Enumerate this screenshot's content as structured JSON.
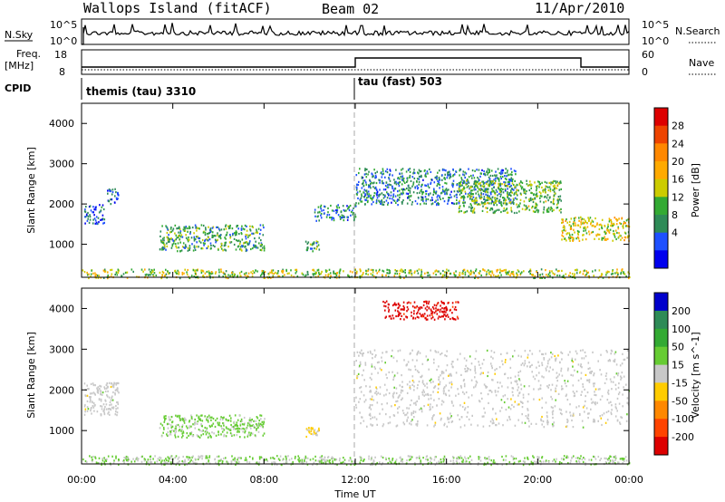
{
  "header": {
    "station": "Wallops Island (fitACF)",
    "beam": "Beam 02",
    "date": "11/Apr/2010"
  },
  "nsky_panel": {
    "label": "N.Sky",
    "ticks": [
      "10^5",
      "10^0"
    ],
    "right_label": "N.Search",
    "right_ticks": [
      "10^5",
      "10^0"
    ]
  },
  "freq_panel": {
    "label_top": "Freq.",
    "label_unit": "[MHz]",
    "ticks": [
      "18",
      "8"
    ],
    "right_label": "Nave",
    "right_ticks": [
      "60",
      "0"
    ]
  },
  "cpid_panel": {
    "label": "CPID",
    "modes": [
      "themis (tau) 3310",
      "tau (fast) 503"
    ]
  },
  "power_panel": {
    "ylabel": "Slant Range [km]",
    "yticks": [
      "4000",
      "3000",
      "2000",
      "1000"
    ],
    "colorbar_label": "Power [dB]",
    "colorbar_ticks": [
      "28",
      "24",
      "20",
      "16",
      "12",
      "8",
      "4"
    ],
    "colorbar_colors": [
      "#dd0000",
      "#ee4400",
      "#ff8800",
      "#ffaa00",
      "#cccc00",
      "#33aa33",
      "#2e8b57",
      "#1e50ff",
      "#0000ee"
    ]
  },
  "velocity_panel": {
    "ylabel": "Slant Range [km]",
    "yticks": [
      "4000",
      "3000",
      "2000",
      "1000"
    ],
    "colorbar_label": "Velocity [m s^-1]",
    "colorbar_ticks": [
      "200",
      "100",
      "50",
      "15",
      "-15",
      "-50",
      "-100",
      "-200"
    ],
    "colorbar_colors": [
      "#0000cc",
      "#2e8b57",
      "#33aa33",
      "#66cc33",
      "#c8c8c8",
      "#ffcc00",
      "#ff8800",
      "#ff4400",
      "#dd0000"
    ]
  },
  "xaxis": {
    "label": "Time UT",
    "ticks": [
      "00:00",
      "04:00",
      "08:00",
      "12:00",
      "16:00",
      "20:00",
      "00:00"
    ]
  },
  "chart_data": [
    {
      "type": "heatmap",
      "title": "Power [dB]",
      "xlabel": "Time UT",
      "ylabel": "Slant Range [km]",
      "xlim": [
        0,
        24
      ],
      "ylim": [
        180,
        4500
      ],
      "colorbar_range": [
        0,
        30
      ],
      "regions": [
        {
          "t": [
            0.1,
            1.0
          ],
          "range": [
            1500,
            2000
          ],
          "value": 6
        },
        {
          "t": [
            1.1,
            1.6
          ],
          "range": [
            2000,
            2400
          ],
          "value": 6
        },
        {
          "t": [
            3.4,
            8.0
          ],
          "range": [
            850,
            1500
          ],
          "value": 10
        },
        {
          "t": [
            9.8,
            10.4
          ],
          "range": [
            850,
            1100
          ],
          "value": 10
        },
        {
          "t": [
            10.2,
            12.0
          ],
          "range": [
            1600,
            2000
          ],
          "value": 8
        },
        {
          "t": [
            12.0,
            19.0
          ],
          "range": [
            2000,
            2900
          ],
          "value": 8
        },
        {
          "t": [
            16.5,
            21.0
          ],
          "range": [
            1800,
            2600
          ],
          "value": 12
        },
        {
          "t": [
            21.0,
            24.0
          ],
          "range": [
            1100,
            1700
          ],
          "value": 16
        },
        {
          "t": [
            0,
            24
          ],
          "range": [
            180,
            400
          ],
          "value": 14
        }
      ]
    },
    {
      "type": "heatmap",
      "title": "Velocity [m s^-1]",
      "xlabel": "Time UT",
      "ylabel": "Slant Range [km]",
      "xlim": [
        0,
        24
      ],
      "ylim": [
        180,
        4500
      ],
      "colorbar_range": [
        -250,
        250
      ],
      "regions": [
        {
          "t": [
            0.1,
            1.6
          ],
          "range": [
            1400,
            2200
          ],
          "value": 0
        },
        {
          "t": [
            3.4,
            8.0
          ],
          "range": [
            850,
            1400
          ],
          "value": 40
        },
        {
          "t": [
            9.8,
            10.4
          ],
          "range": [
            850,
            1100
          ],
          "value": -40
        },
        {
          "t": [
            12.0,
            24.0
          ],
          "range": [
            1100,
            3000
          ],
          "value": 0
        },
        {
          "t": [
            13.2,
            16.5
          ],
          "range": [
            3750,
            4200
          ],
          "value": -220
        },
        {
          "t": [
            0,
            24
          ],
          "range": [
            180,
            400
          ],
          "value": 30
        }
      ]
    }
  ]
}
